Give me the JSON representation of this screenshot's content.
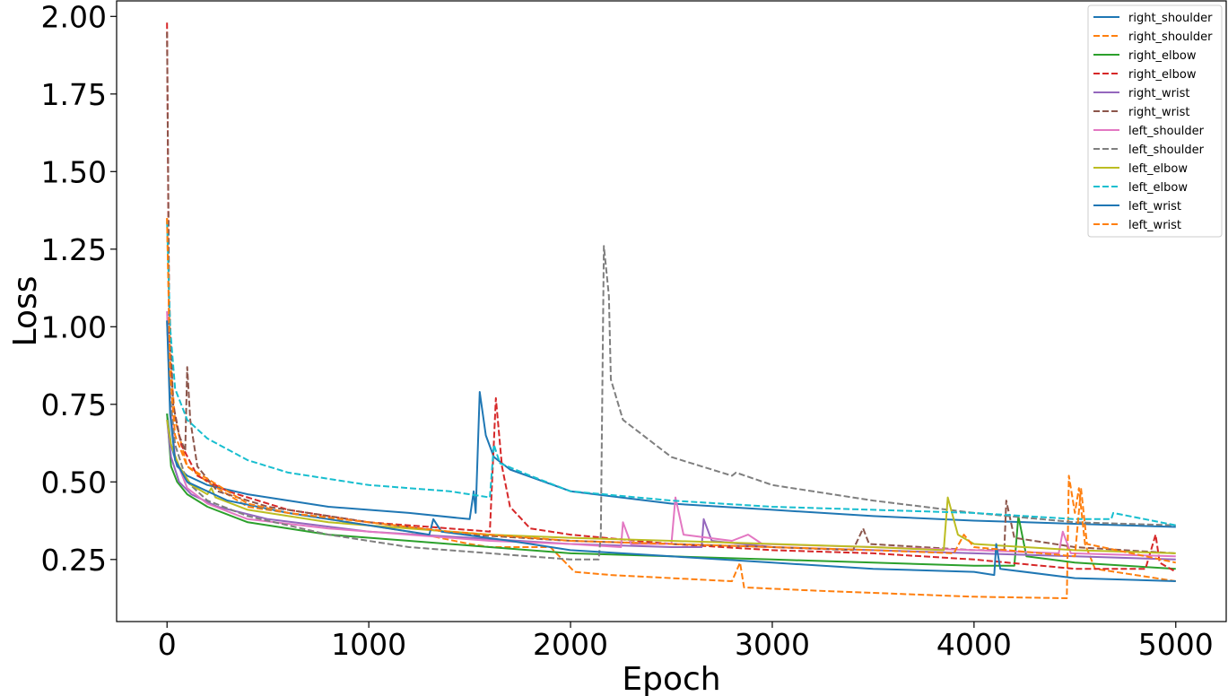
{
  "chart_data": {
    "type": "line",
    "title": "",
    "xlabel": "Epoch",
    "ylabel": "Loss",
    "xlim": [
      -250,
      5250
    ],
    "ylim": [
      0.05,
      2.05
    ],
    "x_ticks": [
      0,
      1000,
      2000,
      3000,
      4000,
      5000
    ],
    "x_tick_labels": [
      "0",
      "1000",
      "2000",
      "3000",
      "4000",
      "5000"
    ],
    "y_ticks": [
      0.25,
      0.5,
      0.75,
      1.0,
      1.25,
      1.5,
      1.75,
      2.0
    ],
    "y_tick_labels": [
      "0.25",
      "0.50",
      "0.75",
      "1.00",
      "1.25",
      "1.50",
      "1.75",
      "2.00"
    ],
    "grid": false,
    "legend_position": "top-right",
    "series": [
      {
        "name": "right_shoulder",
        "color": "#1f77b4",
        "dash": "solid",
        "points": [
          [
            0,
            0.72
          ],
          [
            20,
            0.62
          ],
          [
            50,
            0.55
          ],
          [
            100,
            0.52
          ],
          [
            200,
            0.49
          ],
          [
            400,
            0.46
          ],
          [
            800,
            0.42
          ],
          [
            1200,
            0.4
          ],
          [
            1500,
            0.38
          ],
          [
            1520,
            0.47
          ],
          [
            1530,
            0.4
          ],
          [
            1550,
            0.79
          ],
          [
            1580,
            0.65
          ],
          [
            1620,
            0.58
          ],
          [
            1700,
            0.54
          ],
          [
            2000,
            0.47
          ],
          [
            2500,
            0.43
          ],
          [
            3000,
            0.41
          ],
          [
            3500,
            0.39
          ],
          [
            4000,
            0.375
          ],
          [
            4500,
            0.365
          ],
          [
            5000,
            0.355
          ]
        ]
      },
      {
        "name": "right_shoulder",
        "color": "#ff7f0e",
        "dash": "dashed",
        "points": [
          [
            0,
            1.35
          ],
          [
            15,
            0.9
          ],
          [
            40,
            0.7
          ],
          [
            100,
            0.55
          ],
          [
            200,
            0.5
          ],
          [
            400,
            0.42
          ],
          [
            800,
            0.38
          ],
          [
            1000,
            0.36
          ],
          [
            1200,
            0.34
          ],
          [
            1500,
            0.3
          ],
          [
            1600,
            0.29
          ],
          [
            1900,
            0.29
          ],
          [
            2020,
            0.21
          ],
          [
            2200,
            0.2
          ],
          [
            2500,
            0.19
          ],
          [
            2800,
            0.18
          ],
          [
            2840,
            0.24
          ],
          [
            2860,
            0.16
          ],
          [
            3200,
            0.15
          ],
          [
            3600,
            0.14
          ],
          [
            4000,
            0.13
          ],
          [
            4460,
            0.125
          ],
          [
            4470,
            0.52
          ],
          [
            4500,
            0.4
          ],
          [
            4520,
            0.48
          ],
          [
            4550,
            0.3
          ],
          [
            4600,
            0.22
          ],
          [
            5000,
            0.18
          ]
        ]
      },
      {
        "name": "right_elbow",
        "color": "#2ca02c",
        "dash": "solid",
        "points": [
          [
            0,
            0.72
          ],
          [
            20,
            0.55
          ],
          [
            50,
            0.5
          ],
          [
            100,
            0.46
          ],
          [
            200,
            0.42
          ],
          [
            400,
            0.37
          ],
          [
            800,
            0.33
          ],
          [
            1200,
            0.31
          ],
          [
            1600,
            0.29
          ],
          [
            2000,
            0.27
          ],
          [
            2500,
            0.26
          ],
          [
            3000,
            0.25
          ],
          [
            3500,
            0.24
          ],
          [
            4000,
            0.23
          ],
          [
            4200,
            0.23
          ],
          [
            4220,
            0.39
          ],
          [
            4260,
            0.26
          ],
          [
            4500,
            0.24
          ],
          [
            5000,
            0.22
          ]
        ]
      },
      {
        "name": "right_elbow",
        "color": "#d62728",
        "dash": "dashed",
        "points": [
          [
            0,
            1.98
          ],
          [
            10,
            1.0
          ],
          [
            30,
            0.75
          ],
          [
            70,
            0.62
          ],
          [
            150,
            0.52
          ],
          [
            300,
            0.47
          ],
          [
            600,
            0.41
          ],
          [
            1000,
            0.37
          ],
          [
            1400,
            0.35
          ],
          [
            1600,
            0.34
          ],
          [
            1630,
            0.77
          ],
          [
            1660,
            0.55
          ],
          [
            1700,
            0.42
          ],
          [
            1800,
            0.35
          ],
          [
            2000,
            0.33
          ],
          [
            2500,
            0.3
          ],
          [
            3000,
            0.28
          ],
          [
            3500,
            0.27
          ],
          [
            4000,
            0.25
          ],
          [
            4500,
            0.22
          ],
          [
            4850,
            0.22
          ],
          [
            4900,
            0.33
          ],
          [
            4920,
            0.24
          ],
          [
            5000,
            0.21
          ]
        ]
      },
      {
        "name": "right_wrist",
        "color": "#9467bd",
        "dash": "solid",
        "points": [
          [
            0,
            0.7
          ],
          [
            20,
            0.58
          ],
          [
            60,
            0.5
          ],
          [
            120,
            0.46
          ],
          [
            250,
            0.42
          ],
          [
            500,
            0.38
          ],
          [
            1000,
            0.34
          ],
          [
            1500,
            0.32
          ],
          [
            2000,
            0.3
          ],
          [
            2500,
            0.29
          ],
          [
            2650,
            0.29
          ],
          [
            2660,
            0.38
          ],
          [
            2700,
            0.31
          ],
          [
            3000,
            0.29
          ],
          [
            3500,
            0.28
          ],
          [
            4000,
            0.27
          ],
          [
            4500,
            0.26
          ],
          [
            5000,
            0.25
          ]
        ]
      },
      {
        "name": "right_wrist",
        "color": "#8c564b",
        "dash": "dashed",
        "points": [
          [
            0,
            1.95
          ],
          [
            10,
            1.1
          ],
          [
            30,
            0.75
          ],
          [
            60,
            0.65
          ],
          [
            90,
            0.6
          ],
          [
            100,
            0.87
          ],
          [
            115,
            0.7
          ],
          [
            150,
            0.55
          ],
          [
            250,
            0.47
          ],
          [
            500,
            0.42
          ],
          [
            1000,
            0.37
          ],
          [
            1500,
            0.33
          ],
          [
            2000,
            0.31
          ],
          [
            2500,
            0.3
          ],
          [
            3000,
            0.29
          ],
          [
            3400,
            0.28
          ],
          [
            3450,
            0.35
          ],
          [
            3480,
            0.3
          ],
          [
            4000,
            0.28
          ],
          [
            4150,
            0.28
          ],
          [
            4160,
            0.44
          ],
          [
            4200,
            0.32
          ],
          [
            4500,
            0.29
          ],
          [
            5000,
            0.27
          ]
        ]
      },
      {
        "name": "left_shoulder",
        "color": "#e377c2",
        "dash": "solid",
        "points": [
          [
            0,
            1.05
          ],
          [
            15,
            0.75
          ],
          [
            40,
            0.58
          ],
          [
            100,
            0.48
          ],
          [
            200,
            0.43
          ],
          [
            400,
            0.38
          ],
          [
            800,
            0.35
          ],
          [
            1200,
            0.33
          ],
          [
            1600,
            0.31
          ],
          [
            2000,
            0.3
          ],
          [
            2250,
            0.29
          ],
          [
            2260,
            0.37
          ],
          [
            2300,
            0.3
          ],
          [
            2500,
            0.3
          ],
          [
            2520,
            0.45
          ],
          [
            2560,
            0.33
          ],
          [
            2800,
            0.31
          ],
          [
            2880,
            0.33
          ],
          [
            2950,
            0.3
          ],
          [
            3500,
            0.29
          ],
          [
            4000,
            0.28
          ],
          [
            4420,
            0.27
          ],
          [
            4440,
            0.34
          ],
          [
            4480,
            0.27
          ],
          [
            5000,
            0.26
          ]
        ]
      },
      {
        "name": "left_shoulder",
        "color": "#7f7f7f",
        "dash": "dashed",
        "points": [
          [
            0,
            1.02
          ],
          [
            15,
            0.78
          ],
          [
            40,
            0.62
          ],
          [
            100,
            0.5
          ],
          [
            200,
            0.44
          ],
          [
            400,
            0.39
          ],
          [
            800,
            0.33
          ],
          [
            1200,
            0.29
          ],
          [
            1600,
            0.27
          ],
          [
            2000,
            0.25
          ],
          [
            2140,
            0.25
          ],
          [
            2150,
            0.33
          ],
          [
            2165,
            1.26
          ],
          [
            2190,
            1.1
          ],
          [
            2200,
            0.83
          ],
          [
            2260,
            0.7
          ],
          [
            2500,
            0.58
          ],
          [
            2800,
            0.52
          ],
          [
            2820,
            0.53
          ],
          [
            3000,
            0.49
          ],
          [
            3500,
            0.44
          ],
          [
            4000,
            0.4
          ],
          [
            4500,
            0.37
          ],
          [
            5000,
            0.36
          ]
        ]
      },
      {
        "name": "left_elbow",
        "color": "#bcbd22",
        "dash": "solid",
        "points": [
          [
            0,
            0.7
          ],
          [
            20,
            0.62
          ],
          [
            60,
            0.55
          ],
          [
            120,
            0.49
          ],
          [
            200,
            0.46
          ],
          [
            220,
            0.48
          ],
          [
            240,
            0.45
          ],
          [
            400,
            0.41
          ],
          [
            800,
            0.37
          ],
          [
            1200,
            0.35
          ],
          [
            1600,
            0.33
          ],
          [
            2000,
            0.32
          ],
          [
            2500,
            0.31
          ],
          [
            3000,
            0.3
          ],
          [
            3500,
            0.29
          ],
          [
            3850,
            0.28
          ],
          [
            3870,
            0.45
          ],
          [
            3920,
            0.33
          ],
          [
            4000,
            0.3
          ],
          [
            4500,
            0.28
          ],
          [
            5000,
            0.27
          ]
        ]
      },
      {
        "name": "left_elbow",
        "color": "#17becf",
        "dash": "dashed",
        "points": [
          [
            0,
            1.34
          ],
          [
            15,
            1.0
          ],
          [
            40,
            0.8
          ],
          [
            100,
            0.7
          ],
          [
            200,
            0.64
          ],
          [
            400,
            0.57
          ],
          [
            600,
            0.53
          ],
          [
            1000,
            0.49
          ],
          [
            1400,
            0.47
          ],
          [
            1600,
            0.45
          ],
          [
            1620,
            0.62
          ],
          [
            1650,
            0.56
          ],
          [
            1800,
            0.52
          ],
          [
            2000,
            0.47
          ],
          [
            2500,
            0.44
          ],
          [
            3000,
            0.42
          ],
          [
            3500,
            0.41
          ],
          [
            4000,
            0.4
          ],
          [
            4500,
            0.38
          ],
          [
            4680,
            0.38
          ],
          [
            4690,
            0.4
          ],
          [
            5000,
            0.36
          ]
        ]
      },
      {
        "name": "left_wrist",
        "color": "#1f77b4",
        "dash": "solid",
        "points": [
          [
            0,
            1.02
          ],
          [
            15,
            0.72
          ],
          [
            40,
            0.57
          ],
          [
            100,
            0.5
          ],
          [
            300,
            0.44
          ],
          [
            600,
            0.4
          ],
          [
            1000,
            0.36
          ],
          [
            1300,
            0.33
          ],
          [
            1320,
            0.38
          ],
          [
            1360,
            0.34
          ],
          [
            1700,
            0.31
          ],
          [
            2000,
            0.28
          ],
          [
            2500,
            0.26
          ],
          [
            3000,
            0.24
          ],
          [
            3500,
            0.22
          ],
          [
            4000,
            0.21
          ],
          [
            4100,
            0.2
          ],
          [
            4110,
            0.3
          ],
          [
            4130,
            0.22
          ],
          [
            4500,
            0.19
          ],
          [
            5000,
            0.18
          ]
        ]
      },
      {
        "name": "left_wrist",
        "color": "#ff7f0e",
        "dash": "dashed",
        "points": [
          [
            0,
            1.35
          ],
          [
            15,
            0.85
          ],
          [
            40,
            0.65
          ],
          [
            100,
            0.55
          ],
          [
            200,
            0.51
          ],
          [
            400,
            0.43
          ],
          [
            600,
            0.4
          ],
          [
            1000,
            0.37
          ],
          [
            1400,
            0.34
          ],
          [
            1800,
            0.32
          ],
          [
            2000,
            0.31
          ],
          [
            2500,
            0.3
          ],
          [
            3000,
            0.29
          ],
          [
            3500,
            0.28
          ],
          [
            3900,
            0.27
          ],
          [
            3950,
            0.33
          ],
          [
            4000,
            0.29
          ],
          [
            4500,
            0.26
          ],
          [
            4530,
            0.48
          ],
          [
            4560,
            0.3
          ],
          [
            5000,
            0.24
          ]
        ]
      }
    ]
  }
}
